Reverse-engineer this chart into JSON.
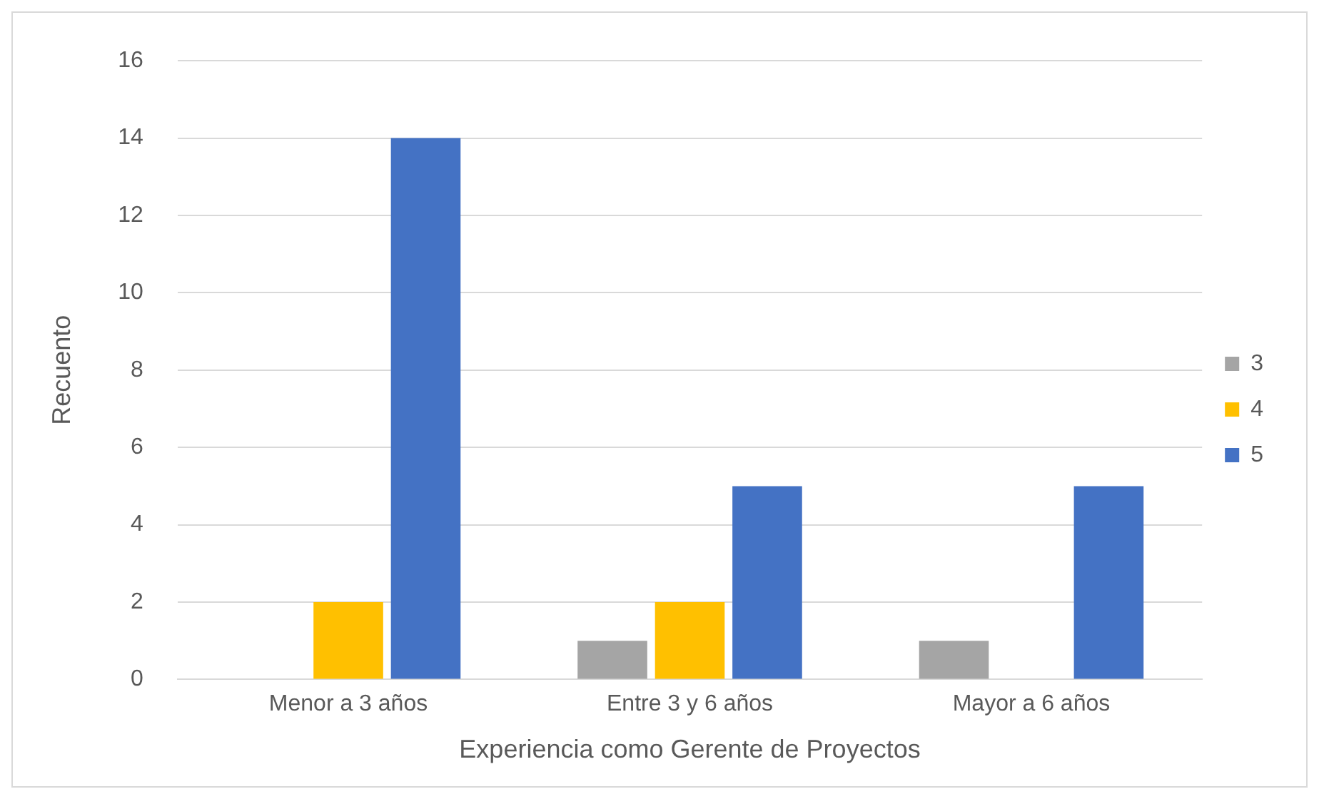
{
  "chart_data": {
    "type": "bar",
    "xlabel": "Experiencia como Gerente de Proyectos",
    "ylabel": "Recuento",
    "categories": [
      "Menor a 3 años",
      "Entre 3 y 6 años",
      "Mayor a 6 años"
    ],
    "series": [
      {
        "name": "3",
        "color": "#a5a5a5",
        "values": [
          null,
          1,
          1
        ]
      },
      {
        "name": "4",
        "color": "#ffc000",
        "values": [
          2,
          2,
          null
        ]
      },
      {
        "name": "5",
        "color": "#4472c4",
        "values": [
          14,
          5,
          5
        ]
      }
    ],
    "ylim": [
      0,
      16
    ],
    "yticks": [
      0,
      2,
      4,
      6,
      8,
      10,
      12,
      14,
      16
    ],
    "grid": "y",
    "legend": "right"
  }
}
